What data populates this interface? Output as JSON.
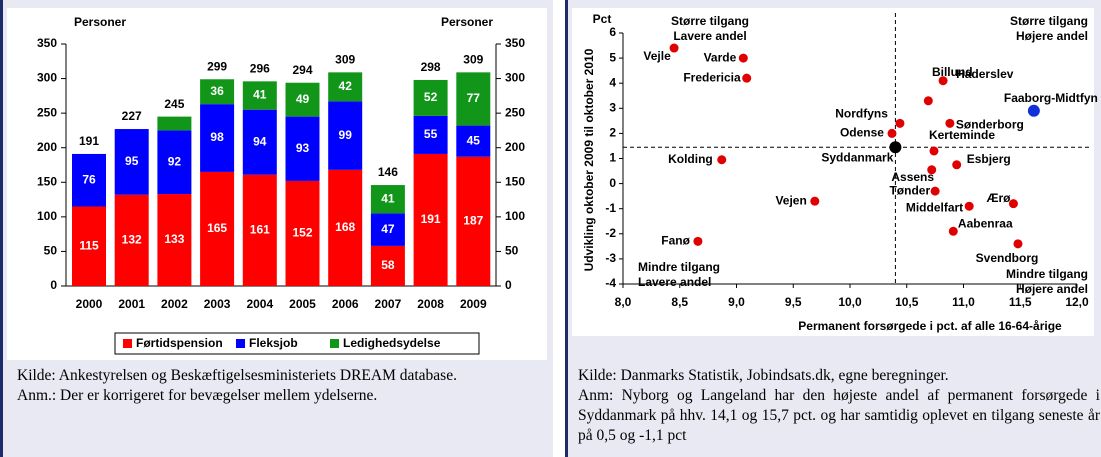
{
  "chart_data": [
    {
      "type": "bar",
      "stacked": true,
      "y_label_left": "Personer",
      "y_label_right": "Personer",
      "categories": [
        "2000",
        "2001",
        "2002",
        "2003",
        "2004",
        "2005",
        "2006",
        "2007",
        "2008",
        "2009"
      ],
      "series": [
        {
          "name": "Førtidspension",
          "color": "#ff0000",
          "values": [
            115,
            132,
            133,
            165,
            161,
            152,
            168,
            58,
            191,
            187
          ]
        },
        {
          "name": "Fleksjob",
          "color": "#0000ff",
          "values": [
            76,
            95,
            92,
            98,
            94,
            93,
            99,
            47,
            55,
            45
          ]
        },
        {
          "name": "Ledighedsydelse",
          "color": "#12961a",
          "values": [
            0,
            0,
            20,
            36,
            41,
            49,
            42,
            41,
            52,
            77
          ],
          "value_labels": [
            null,
            null,
            null,
            "36",
            "41",
            "49",
            "42",
            "41",
            "52",
            "77"
          ]
        }
      ],
      "totals": [
        191,
        227,
        245,
        299,
        296,
        294,
        309,
        146,
        298,
        309
      ],
      "ylim": [
        0,
        350
      ],
      "yticks": [
        0,
        50,
        100,
        150,
        200,
        250,
        300,
        350
      ],
      "y2lim": [
        0,
        350
      ],
      "y2ticks": [
        0,
        50,
        100,
        150,
        200,
        250,
        300,
        350
      ],
      "legend": "bottom"
    },
    {
      "type": "scatter",
      "x_label": "Permanent forsørgede i pct. af alle 16-64-årige",
      "y_label": "Udvikling oktober 2009 til oktober 2010",
      "y_unit": "Pct",
      "corner_labels": {
        "top_left": [
          "Større tilgang",
          "Lavere andel"
        ],
        "top_right": [
          "Større tilgang",
          "Højere andel"
        ],
        "bottom_left": [
          "Mindre tilgang",
          "Lavere andel"
        ],
        "bottom_right": [
          "Mindre tilgang",
          "Højere andel"
        ]
      },
      "points": [
        {
          "name": "Vejle",
          "x": 8.45,
          "y": 5.4,
          "color": "#e00000"
        },
        {
          "name": "Varde",
          "x": 9.06,
          "y": 5.0,
          "color": "#e00000"
        },
        {
          "name": "Fredericia",
          "x": 9.09,
          "y": 4.2,
          "color": "#e00000"
        },
        {
          "name": "Billund",
          "x": 10.69,
          "y": 3.3,
          "color": "#e00000"
        },
        {
          "name": "Haderslev",
          "x": 10.82,
          "y": 4.1,
          "color": "#e00000"
        },
        {
          "name": "Faaborg-Midtfyn",
          "x": 11.62,
          "y": 2.9,
          "color": "#1030d8"
        },
        {
          "name": "Sønderborg",
          "x": 10.88,
          "y": 2.4,
          "color": "#e00000"
        },
        {
          "name": "Nordfyns",
          "x": 10.44,
          "y": 2.4,
          "color": "#e00000"
        },
        {
          "name": "Odense",
          "x": 10.37,
          "y": 2.0,
          "color": "#e00000"
        },
        {
          "name": "Kerteminde",
          "x": 10.74,
          "y": 1.3,
          "color": "#e00000"
        },
        {
          "name": "Syddanmark",
          "x": 10.4,
          "y": 1.45,
          "color": "#000000"
        },
        {
          "name": "Kolding",
          "x": 8.87,
          "y": 0.95,
          "color": "#e00000"
        },
        {
          "name": "Esbjerg",
          "x": 10.94,
          "y": 0.75,
          "color": "#e00000"
        },
        {
          "name": "Assens",
          "x": 10.72,
          "y": 0.55,
          "color": "#e00000"
        },
        {
          "name": "Tønder",
          "x": 10.75,
          "y": -0.3,
          "color": "#e00000"
        },
        {
          "name": "Vejen",
          "x": 9.69,
          "y": -0.7,
          "color": "#e00000"
        },
        {
          "name": "Middelfart",
          "x": 11.05,
          "y": -0.9,
          "color": "#e00000"
        },
        {
          "name": "Ærø",
          "x": 11.44,
          "y": -0.8,
          "color": "#e00000"
        },
        {
          "name": "Aabenraa",
          "x": 10.91,
          "y": -1.9,
          "color": "#e00000"
        },
        {
          "name": "Fanø",
          "x": 8.66,
          "y": -2.3,
          "color": "#e00000"
        },
        {
          "name": "Svendborg",
          "x": 11.48,
          "y": -2.4,
          "color": "#e00000"
        }
      ],
      "reference": {
        "x": 10.4,
        "y": 1.45
      },
      "xlim": [
        8.0,
        12.0
      ],
      "xticks": [
        {
          "value": 8.0,
          "label": "8,0"
        },
        {
          "value": 8.5,
          "label": "8,5"
        },
        {
          "value": 9.0,
          "label": "9,0"
        },
        {
          "value": 9.5,
          "label": "9,5"
        },
        {
          "value": 10.0,
          "label": "10,0"
        },
        {
          "value": 10.5,
          "label": "10,5"
        },
        {
          "value": 11.0,
          "label": "11,0"
        },
        {
          "value": 11.5,
          "label": "11,5"
        },
        {
          "value": 12.0,
          "label": "12,0"
        }
      ],
      "ylim": [
        -4,
        6
      ],
      "yticks": [
        -4,
        -3,
        -2,
        -1,
        0,
        1,
        2,
        3,
        4,
        5,
        6
      ]
    }
  ],
  "captions": [
    {
      "source": "Kilde: Ankestyrelsen og Beskæftigelsesministeriets DREAM database.",
      "note": "Anm.: Der er korrigeret for bevægelser mellem ydelserne."
    },
    {
      "source": "Kilde: Danmarks Statistik, Jobindsats.dk, egne beregninger.",
      "note": "Anm: Nyborg og Langeland har den højeste andel af permanent forsørgede i Syddanmark på hhv. 14,1 og 15,7 pct. og har samtidig oplevet en tilgang seneste år på 0,5 og -1,1 pct"
    }
  ]
}
